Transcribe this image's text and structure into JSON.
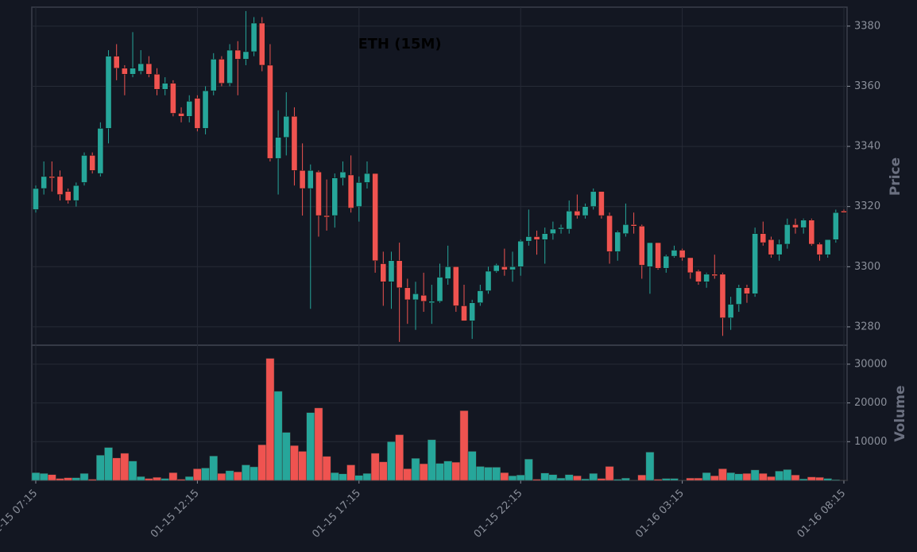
{
  "chart_data": {
    "type": "candlestick",
    "title": "ETH (15M)",
    "ylabel": "Price",
    "volume_label": "Volume",
    "categories": [
      "01-15 07:15",
      null,
      null,
      null,
      null,
      null,
      null,
      null,
      null,
      null,
      null,
      null,
      null,
      null,
      null,
      null,
      null,
      null,
      null,
      null,
      "01-15 12:15",
      null,
      null,
      null,
      null,
      null,
      null,
      null,
      null,
      null,
      null,
      null,
      null,
      null,
      null,
      null,
      null,
      null,
      null,
      null,
      "01-15 17:15",
      null,
      null,
      null,
      null,
      null,
      null,
      null,
      null,
      null,
      null,
      null,
      null,
      null,
      null,
      null,
      null,
      null,
      null,
      null,
      "01-15 22:15",
      null,
      null,
      null,
      null,
      null,
      null,
      null,
      null,
      null,
      null,
      null,
      null,
      null,
      null,
      null,
      null,
      null,
      null,
      null,
      "01-16 03:15",
      null,
      null,
      null,
      null,
      null,
      null,
      null,
      null,
      null,
      null,
      null,
      null,
      null,
      null,
      null,
      null,
      null,
      null,
      null,
      "01-16 08:15"
    ],
    "open": [
      3319,
      3326,
      3330,
      3330,
      3325,
      3322,
      3328,
      3337,
      3331,
      3346,
      3370,
      3366,
      3364,
      3365,
      3367.5,
      3364,
      3359,
      3361,
      3351,
      3350,
      3356,
      3346,
      3358.5,
      3369,
      3361,
      3372,
      3369,
      3371.5,
      3381,
      3367,
      3336,
      3343,
      3350,
      3332,
      3326,
      3331.5,
      3317,
      3317,
      3329.5,
      3330.5,
      3320,
      3328,
      3331,
      3301,
      3295,
      3302,
      3293,
      3289,
      3290.5,
      3288,
      3288.5,
      3296,
      3300,
      3287,
      3282,
      3288,
      3292,
      3298.5,
      3300,
      3299,
      3300,
      3308.5,
      3310,
      3309,
      3311,
      3312.5,
      3312.5,
      3318.5,
      3317,
      3320,
      3325,
      3317,
      3305,
      3311,
      3314,
      3313.5,
      3300,
      3308,
      3299.5,
      3303.5,
      3305.5,
      3303,
      3298.5,
      3295,
      3297.5,
      3297.5,
      3283,
      3287.5,
      3293,
      3291,
      3311,
      3309,
      3304,
      3307.5,
      3314,
      3313,
      3315.5,
      3307.5,
      3304,
      3309,
      3318.5
    ],
    "high": [
      3327,
      3335,
      3335,
      3332,
      3326,
      3328,
      3338,
      3338,
      3348,
      3372,
      3374,
      3367,
      3378,
      3372,
      3370,
      3366,
      3363,
      3362,
      3353,
      3357,
      3357,
      3360,
      3371,
      3370,
      3374,
      3375,
      3385,
      3383,
      3383,
      3374,
      3352,
      3358,
      3353,
      3341,
      3334,
      3332,
      3329,
      3331,
      3335,
      3337,
      3330,
      3335,
      3331,
      3305,
      3305,
      3308,
      3296,
      3295,
      3298,
      3294,
      3301,
      3307,
      3300,
      3294,
      3289,
      3294,
      3300,
      3301,
      3306,
      3305,
      3309,
      3319,
      3312,
      3313,
      3315,
      3314,
      3322,
      3324,
      3321,
      3326,
      3325,
      3318,
      3312,
      3321,
      3318,
      3314,
      3308,
      3308,
      3304,
      3307,
      3306,
      3303,
      3299,
      3298,
      3304,
      3298,
      3290,
      3294,
      3294,
      3313,
      3315,
      3310,
      3309,
      3316,
      3316,
      3316,
      3316,
      3308,
      3309,
      3319,
      3319
    ],
    "low": [
      3318,
      3324,
      3325,
      3322,
      3321,
      3320,
      3327,
      3331,
      3330,
      3341,
      3362,
      3357,
      3363,
      3364,
      3363,
      3357,
      3357,
      3350,
      3348,
      3348,
      3345,
      3344,
      3357,
      3360,
      3360,
      3357,
      3367,
      3370,
      3365,
      3335,
      3324,
      3337,
      3327,
      3317,
      3286,
      3310,
      3312,
      3313,
      3327,
      3318,
      3315,
      3326,
      3298,
      3287,
      3286,
      3275,
      3281,
      3279,
      3285,
      3281,
      3288,
      3294,
      3285,
      3282,
      3276,
      3287,
      3291,
      3298,
      3297,
      3295,
      3297,
      3307,
      3304,
      3301,
      3309,
      3311,
      3311,
      3316,
      3316,
      3319,
      3316,
      3301,
      3302,
      3310,
      3311,
      3296,
      3291,
      3299,
      3298,
      3303,
      3302,
      3296,
      3294,
      3293,
      3296,
      3277,
      3279,
      3285,
      3288,
      3290,
      3307,
      3303,
      3302,
      3306,
      3311,
      3311,
      3307,
      3302,
      3303,
      3308,
      3318
    ],
    "close": [
      3326,
      3330,
      3329.5,
      3324,
      3322,
      3327,
      3337,
      3332,
      3346,
      3370,
      3366,
      3364,
      3366,
      3367.5,
      3364,
      3359,
      3361,
      3351,
      3350,
      3355,
      3346,
      3358.5,
      3369,
      3361,
      3372,
      3369,
      3371.5,
      3381,
      3367,
      3336,
      3343,
      3350,
      3332,
      3326,
      3332,
      3317,
      3316.5,
      3329.5,
      3331.5,
      3319.5,
      3328,
      3331,
      3302,
      3295,
      3302,
      3293,
      3289,
      3291,
      3288.5,
      3288.5,
      3296.5,
      3300,
      3287,
      3282,
      3288,
      3292,
      3298.5,
      3300.5,
      3299,
      3300,
      3308.5,
      3310,
      3309,
      3311,
      3312.5,
      3313,
      3318.5,
      3317,
      3320,
      3325,
      3317,
      3305,
      3311.5,
      3314,
      3313.5,
      3300.5,
      3308,
      3299.5,
      3303.5,
      3305.5,
      3303,
      3298,
      3295,
      3297.5,
      3297,
      3283,
      3287.5,
      3293,
      3291,
      3311,
      3308,
      3304,
      3307.5,
      3314,
      3313,
      3315.5,
      3307.5,
      3304,
      3309,
      3318,
      3318
    ],
    "volume": [
      2000,
      1800,
      1500,
      500,
      700,
      700,
      1800,
      300,
      6500,
      8500,
      5800,
      7000,
      5000,
      1000,
      500,
      800,
      500,
      2000,
      300,
      1000,
      3000,
      3200,
      6300,
      1800,
      2500,
      2200,
      4000,
      3500,
      9200,
      31500,
      23000,
      12400,
      9000,
      7500,
      17500,
      18700,
      6200,
      2000,
      1700,
      4000,
      1300,
      1800,
      7000,
      4800,
      10000,
      11800,
      3000,
      5700,
      4300,
      10500,
      4400,
      5000,
      4700,
      18000,
      7500,
      3600,
      3400,
      3400,
      2000,
      1200,
      1400,
      5500,
      300,
      1900,
      1500,
      600,
      1500,
      1200,
      400,
      1800,
      500,
      3600,
      300,
      600,
      100,
      1400,
      7300,
      300,
      500,
      500,
      100,
      600,
      600,
      2000,
      1200,
      3000,
      2000,
      1700,
      1800,
      2700,
      1800,
      1000,
      2400,
      2800,
      1400,
      400,
      900,
      800,
      500,
      200,
      50
    ],
    "up_color": "#26a69a",
    "down_color": "#ef5350",
    "ylim": [
      3273.9,
      3386.3
    ],
    "yticks": [
      3280,
      3300,
      3320,
      3340,
      3360,
      3380
    ],
    "volume_ylim": [
      0,
      34900
    ],
    "volume_yticks": [
      10000,
      20000,
      30000
    ],
    "grid": true
  }
}
